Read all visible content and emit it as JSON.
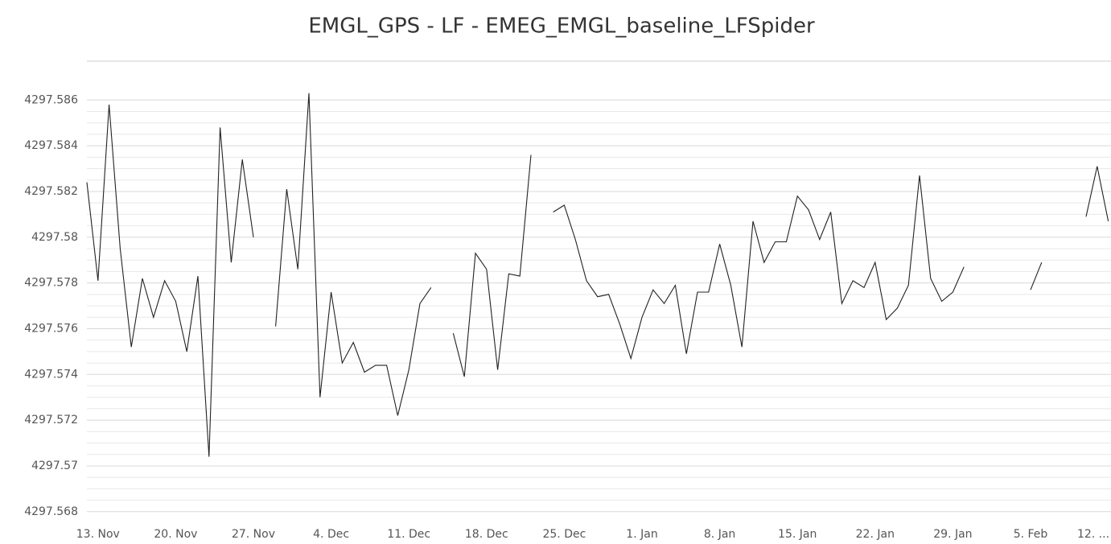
{
  "chart_data": {
    "type": "line",
    "title": "EMGL_GPS - LF - EMEG_EMGL_baseline_LFSpider",
    "categories": [
      null,
      "13. Nov",
      null,
      null,
      null,
      null,
      null,
      null,
      "20. Nov",
      null,
      null,
      null,
      null,
      null,
      null,
      "27. Nov",
      null,
      null,
      null,
      null,
      null,
      null,
      "4. Dec",
      null,
      null,
      null,
      null,
      null,
      null,
      "11. Dec",
      null,
      null,
      null,
      null,
      null,
      null,
      "18. Dec",
      null,
      null,
      null,
      null,
      null,
      null,
      "25. Dec",
      null,
      null,
      null,
      null,
      null,
      null,
      "1. Jan",
      null,
      null,
      null,
      null,
      null,
      null,
      "8. Jan",
      null,
      null,
      null,
      null,
      null,
      null,
      "15. Jan",
      null,
      null,
      null,
      null,
      null,
      null,
      "22. Jan",
      null,
      null,
      null,
      null,
      null,
      null,
      "29. Jan",
      null,
      null,
      null,
      null,
      null,
      null,
      "5. Feb",
      null,
      null,
      null,
      null,
      null,
      null,
      "12. ..."
    ],
    "series": [
      {
        "color": "#222222",
        "values": [
          4297.5824,
          4297.5781,
          4297.5858,
          4297.5795,
          4297.5752,
          4297.5782,
          4297.5765,
          4297.5781,
          4297.5772,
          4297.575,
          4297.5783,
          4297.5704,
          4297.5848,
          4297.5789,
          4297.5834,
          4297.58,
          null,
          4297.5761,
          4297.5821,
          4297.5786,
          4297.5863,
          4297.573,
          4297.5776,
          4297.5745,
          4297.5754,
          4297.5741,
          4297.5744,
          4297.5744,
          4297.5722,
          4297.5742,
          4297.5771,
          4297.5778,
          null,
          4297.5758,
          4297.5739,
          4297.5793,
          4297.5786,
          4297.5742,
          4297.5784,
          4297.5783,
          4297.5836,
          null,
          4297.5811,
          4297.5814,
          4297.5799,
          4297.5781,
          4297.5774,
          4297.5775,
          4297.5762,
          4297.5747,
          4297.5765,
          4297.5777,
          4297.5771,
          4297.5779,
          4297.5749,
          4297.5776,
          4297.5776,
          4297.5797,
          4297.5779,
          4297.5752,
          4297.5807,
          4297.5789,
          4297.5798,
          4297.5798,
          4297.5818,
          4297.5812,
          4297.5799,
          4297.5811,
          4297.5771,
          4297.5781,
          4297.5778,
          4297.5789,
          4297.5764,
          4297.5769,
          4297.5779,
          4297.5827,
          4297.5782,
          4297.5772,
          4297.5776,
          4297.5787,
          null,
          null,
          null,
          null,
          null,
          4297.5777,
          4297.5789,
          null,
          null,
          null,
          4297.5809,
          4297.5831,
          4297.5807
        ]
      }
    ],
    "ylim": [
      4297.5675,
      4297.5877
    ],
    "yticks": [
      4297.568,
      4297.57,
      4297.572,
      4297.574,
      4297.576,
      4297.578,
      4297.58,
      4297.582,
      4297.584,
      4297.586
    ],
    "grid": true
  }
}
